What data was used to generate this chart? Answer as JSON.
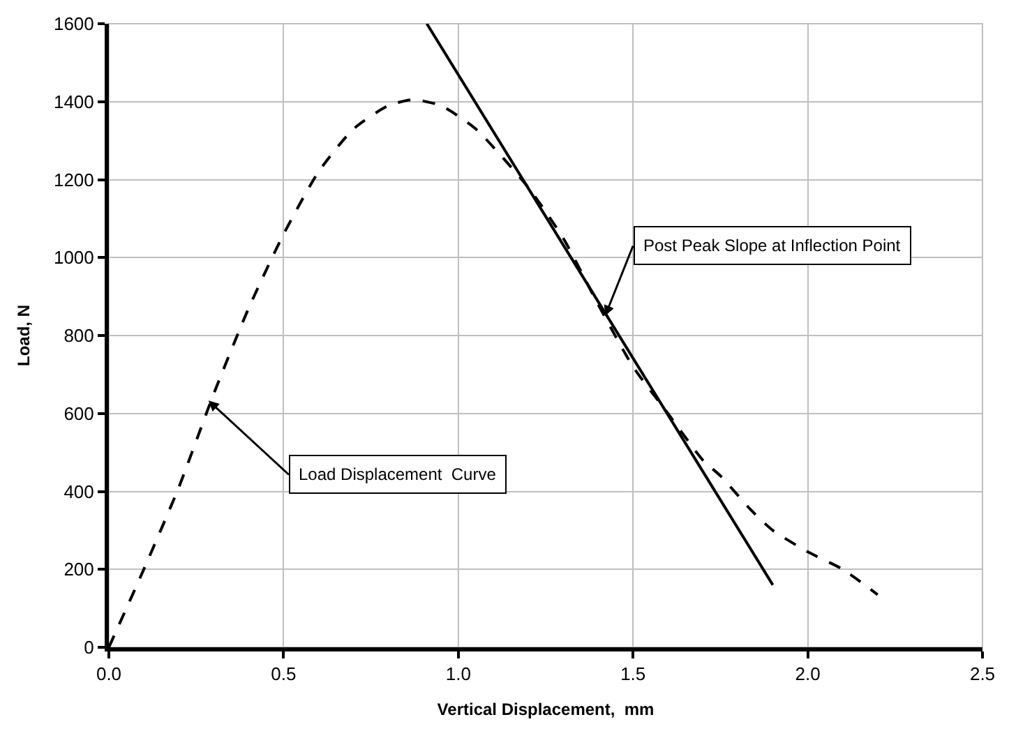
{
  "chart_data": {
    "type": "line",
    "xlabel": "Vertical Displacement,  mm",
    "ylabel": "Load, N",
    "xlim": [
      0,
      2.5
    ],
    "xticks": [
      {
        "value": 0,
        "label": "0.0"
      },
      0.5,
      {
        "value": 1,
        "label": "1.0"
      },
      1.5,
      {
        "value": 2,
        "label": "2.0"
      },
      2.5
    ],
    "ylim": [
      0,
      1600
    ],
    "yticks": [
      0,
      200,
      400,
      600,
      800,
      1000,
      1200,
      1400,
      1600
    ],
    "grid": true,
    "marker": "none",
    "series": [
      {
        "color": "#000000",
        "line_style": "dashed",
        "x": [
          0,
          0.1,
          0.2,
          0.3,
          0.4,
          0.5,
          0.6,
          0.7,
          0.8,
          0.87,
          0.95,
          1.05,
          1.2,
          1.3,
          1.4,
          1.5,
          1.6,
          1.7,
          1.75,
          1.84,
          1.9,
          2.0,
          2.1,
          2.2
        ],
        "values": [
          0,
          200,
          410,
          650,
          870,
          1060,
          1220,
          1330,
          1390,
          1405,
          1390,
          1330,
          1180,
          1050,
          880,
          720,
          600,
          480,
          440,
          350,
          300,
          245,
          200,
          135
        ]
      },
      {
        "color": "#000000",
        "line_style": "solid",
        "x": [
          0.91,
          1.9
        ],
        "values": [
          1600,
          160
        ]
      }
    ],
    "annotations": [
      {
        "text": "Load Displacement  Curve",
        "x": 0.285,
        "y": 633
      },
      {
        "text": "Post Peak Slope at Inflection Point",
        "x": 1.42,
        "y": 850
      }
    ]
  }
}
